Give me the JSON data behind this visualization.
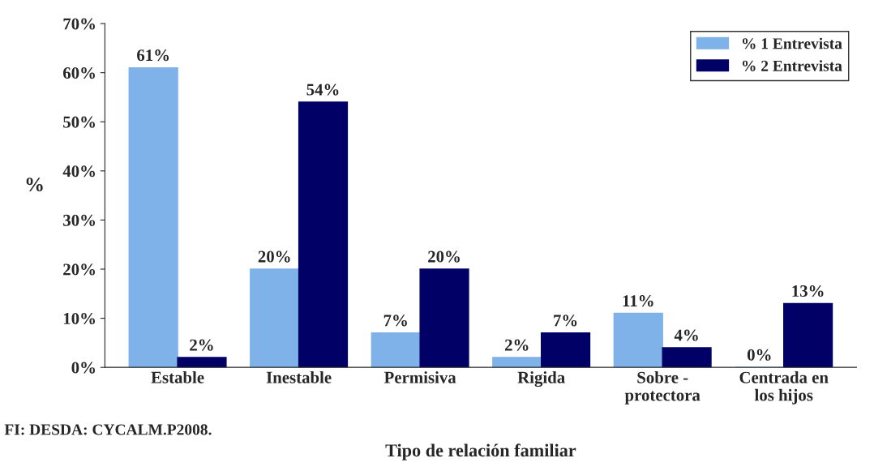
{
  "chart_data": {
    "type": "bar",
    "categories": [
      "Estable",
      "Inestable",
      "Permisiva",
      "Rigida",
      "Sobre -\nprotectora",
      "Centrada en\nlos hijos"
    ],
    "series": [
      {
        "name": "% 1 Entrevista",
        "color": "#7fb2e8",
        "values": [
          61,
          20,
          7,
          2,
          11,
          0
        ],
        "value_labels": [
          "61%",
          "20%",
          "7%",
          "2%",
          "11%",
          "0%"
        ]
      },
      {
        "name": "% 2 Entrevista",
        "color": "#000066",
        "values": [
          2,
          54,
          20,
          7,
          4,
          13
        ],
        "value_labels": [
          "2%",
          "54%",
          "20%",
          "7%",
          "4%",
          "13%"
        ]
      }
    ],
    "ylim": [
      0,
      70
    ],
    "yticks": [
      {
        "value": 0,
        "label": "0%"
      },
      {
        "value": 10,
        "label": "10%"
      },
      {
        "value": 20,
        "label": "20%"
      },
      {
        "value": 30,
        "label": "30%"
      },
      {
        "value": 40,
        "label": "40%"
      },
      {
        "value": 50,
        "label": "50%"
      },
      {
        "value": 60,
        "label": "60%"
      },
      {
        "value": 70,
        "label": "70%"
      }
    ],
    "ylabel": "%",
    "xlabel": "Tipo de relación familiar",
    "legend": "top right",
    "grid": false,
    "annotations": [
      "FI: DESDA: CYCALM.P2008."
    ]
  }
}
